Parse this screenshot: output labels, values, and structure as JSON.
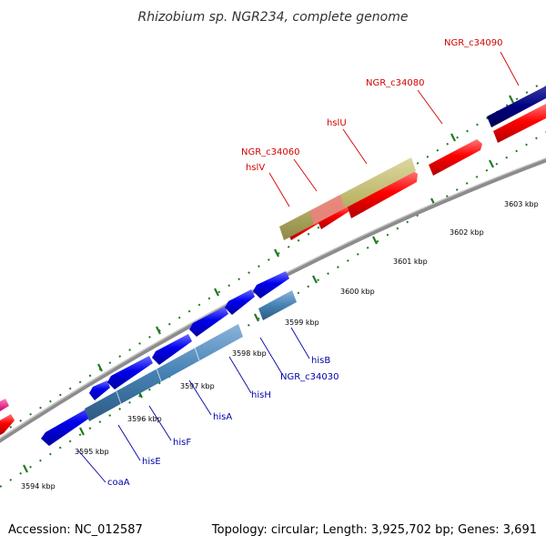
{
  "title": "Rhizobium sp. NGR234, complete genome",
  "footer": {
    "accession": "Accession: NC_012587",
    "summary": "Topology: circular; Length: 3,925,702 bp; Genes: 3,691"
  },
  "kbp_labels": [
    {
      "id": "kbp-3594",
      "text": "3594 kbp"
    },
    {
      "id": "kbp-3595",
      "text": "3595 kbp"
    },
    {
      "id": "kbp-3596",
      "text": "3596 kbp"
    },
    {
      "id": "kbp-3597",
      "text": "3597 kbp"
    },
    {
      "id": "kbp-3598",
      "text": "3598 kbp"
    },
    {
      "id": "kbp-3599",
      "text": "3599 kbp"
    },
    {
      "id": "kbp-3600",
      "text": "3600 kbp"
    },
    {
      "id": "kbp-3601",
      "text": "3601 kbp"
    },
    {
      "id": "kbp-3602",
      "text": "3602 kbp"
    },
    {
      "id": "kbp-3603",
      "text": "3603 kbp"
    }
  ],
  "gene_labels": [
    {
      "id": "NGR_c34090",
      "text": "NGR_c34090",
      "color": "red"
    },
    {
      "id": "NGR_c34080",
      "text": "NGR_c34080",
      "color": "red"
    },
    {
      "id": "hslU",
      "text": "hslU",
      "color": "red"
    },
    {
      "id": "NGR_c34060",
      "text": "NGR_c34060",
      "color": "red"
    },
    {
      "id": "hslV",
      "text": "hslV",
      "color": "red"
    },
    {
      "id": "hisB",
      "text": "hisB",
      "color": "blue"
    },
    {
      "id": "NGR_c34030",
      "text": "NGR_c34030",
      "color": "blue"
    },
    {
      "id": "hisH",
      "text": "hisH",
      "color": "blue"
    },
    {
      "id": "hisA",
      "text": "hisA",
      "color": "blue"
    },
    {
      "id": "hisF",
      "text": "hisF",
      "color": "blue"
    },
    {
      "id": "hisE",
      "text": "hisE",
      "color": "blue"
    },
    {
      "id": "coaA",
      "text": "coaA",
      "color": "blue"
    }
  ],
  "colors": {
    "backbone": "#8c8c8c",
    "tick": "#1f7a1f",
    "forward_gene": "#ff0000",
    "reverse_gene": "#0000ee",
    "rrna_band": "#bdb76b",
    "feature_band": "#4682b4",
    "navy_gene": "#000080",
    "pink_gene": "#ff1493",
    "label_red": "#d40000",
    "label_blue": "#0000aa"
  }
}
